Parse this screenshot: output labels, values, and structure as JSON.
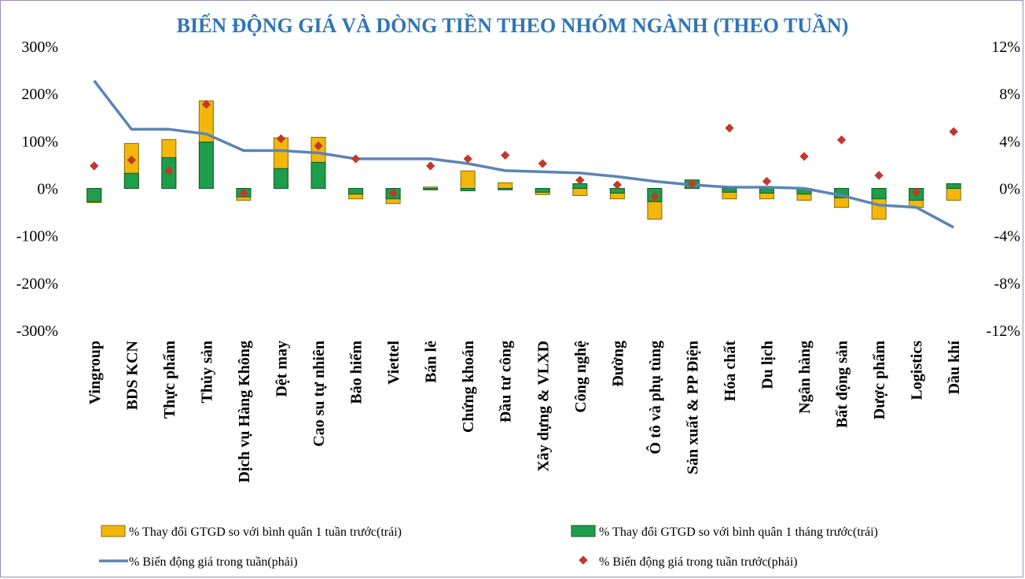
{
  "chart_data": {
    "type": "bar",
    "title": "BIẾN ĐỘNG GIÁ VÀ DÒNG TIỀN THEO NHÓM NGÀNH (THEO TUẦN)",
    "categories": [
      "Vingroup",
      "BDS KCN",
      "Thực phẩm",
      "Thủy sản",
      "Dịch vụ Hàng Không",
      "Dệt may",
      "Cao su tự nhiên",
      "Bảo hiểm",
      "Viettel",
      "Bán lẻ",
      "Chứng khoán",
      "Đầu tư công",
      "Xây dựng & VLXD",
      "Công nghệ",
      "Đường",
      "Ô tô và phụ tùng",
      "Sản xuất & PP Điện",
      "Hóa chất",
      "Du lịch",
      "Ngân hàng",
      "Bất động sản",
      "Dược phẩm",
      "Logistics",
      "Dầu khí"
    ],
    "left_axis": {
      "ylim": [
        -300,
        300
      ],
      "ticks": [
        300,
        200,
        100,
        0,
        -100,
        -200,
        -300
      ],
      "tick_labels": [
        "300%",
        "200%",
        "100%",
        "0%",
        "-100%",
        "-200%",
        "-300%"
      ]
    },
    "right_axis": {
      "ylim": [
        -12,
        12
      ],
      "ticks": [
        12,
        8,
        4,
        0,
        -4,
        -8,
        -12
      ],
      "tick_labels": [
        "12%",
        "8%",
        "4%",
        "0%",
        "-4%",
        "-8%",
        "-12%"
      ]
    },
    "series": [
      {
        "name": "% Thay đổi GTGD so với bình quân 1 tuần trước(trái)",
        "type": "bar",
        "axis": "left",
        "color": "#f2b70a",
        "values": [
          -30,
          95,
          103,
          185,
          -25,
          107,
          108,
          -22,
          -32,
          3,
          37,
          12,
          -13,
          -15,
          -22,
          -65,
          8,
          -22,
          -22,
          -25,
          -40,
          -65,
          -40,
          -25
        ]
      },
      {
        "name": "% Thay đổi GTGD so với bình quân 1 tháng trước(trái)",
        "type": "bar",
        "axis": "left",
        "color": "#1e9e4a",
        "values": [
          -28,
          32,
          65,
          98,
          -18,
          42,
          55,
          -12,
          -22,
          -3,
          -5,
          -3,
          -8,
          10,
          -10,
          -28,
          18,
          -8,
          -10,
          -12,
          -20,
          -22,
          -25,
          10
        ]
      },
      {
        "name": "% Biến động giá trong tuần(phải)",
        "type": "line",
        "axis": "right",
        "color": "#5b84b6",
        "values": [
          9.1,
          5.0,
          5.0,
          4.6,
          3.2,
          3.2,
          3.0,
          2.5,
          2.5,
          2.5,
          2.1,
          1.5,
          1.4,
          1.3,
          1.0,
          0.6,
          0.3,
          0.1,
          0.1,
          0.0,
          -0.6,
          -1.4,
          -1.6,
          -3.3
        ]
      },
      {
        "name": "% Biến động giá trong tuần trước(phải)",
        "type": "scatter",
        "axis": "right",
        "color": "#c0392b",
        "values": [
          1.9,
          2.4,
          1.5,
          7.1,
          -0.4,
          4.2,
          3.6,
          2.5,
          -0.4,
          1.9,
          2.5,
          2.8,
          2.1,
          0.7,
          0.3,
          -0.7,
          0.4,
          5.1,
          0.6,
          2.7,
          4.1,
          1.1,
          -0.3,
          4.8
        ]
      }
    ],
    "legend_position": "bottom",
    "grid": false
  }
}
